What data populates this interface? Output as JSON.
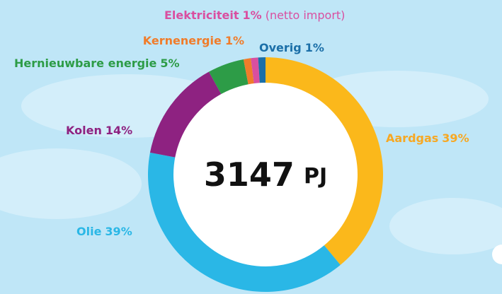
{
  "chart_data": {
    "type": "donut",
    "categories": [
      "Aardgas",
      "Olie",
      "Kolen",
      "Hernieuwbare energie",
      "Kernenergie",
      "Elektriciteit",
      "Overig"
    ],
    "values": [
      39,
      39,
      14,
      5,
      1,
      1,
      1
    ],
    "value_labels": [
      "39%",
      "39%",
      "14%",
      "5%",
      "1%",
      "1%",
      "1%"
    ],
    "colors": [
      "#fbb81b",
      "#2ab7e6",
      "#8e2281",
      "#2d9c47",
      "#f07c2a",
      "#d94fa0",
      "#1b6fa8"
    ],
    "label_colors": [
      "#f7a823",
      "#2ab7e6",
      "#8e2281",
      "#2d9c47",
      "#f07c2a",
      "#d94fa0",
      "#1b6fa8"
    ],
    "annotation": "(netto import)",
    "center_value": 3147,
    "center_unit": "PJ"
  }
}
